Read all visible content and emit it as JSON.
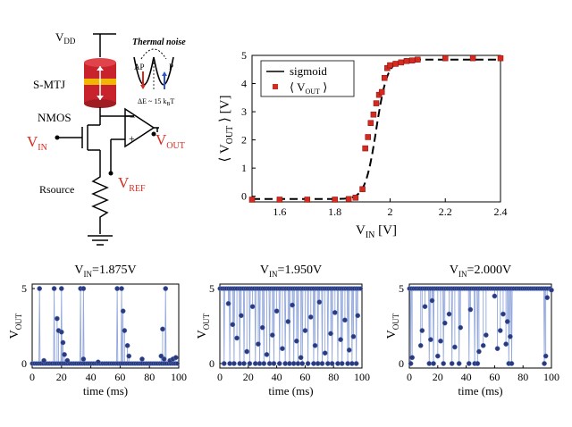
{
  "schematic": {
    "vdd": "V",
    "vdd_sub": "DD",
    "smtj": "S-MTJ",
    "nmos": "NMOS",
    "vin": "V",
    "vin_sub": "IN",
    "vout": "V",
    "vout_sub": "OUT",
    "vref": "V",
    "vref_sub": "REF",
    "rsource": "Rsource",
    "thermal_noise": "Thermal noise",
    "ap": "AP",
    "p": "P",
    "barrier": "ΔE ~ 15 k",
    "barrier_sub": "B",
    "barrier_tail": "T",
    "colors": {
      "red": "#d62a1e",
      "gold": "#f2b705",
      "blue": "#2b57c9"
    }
  },
  "chart_data": [
    {
      "id": "transfer",
      "type": "line",
      "xlabel": "V",
      "xlabel_sub": "IN",
      "xlabel_unit": " [V]",
      "ylabel": "⟨ V",
      "ylabel_sub": "OUT",
      "ylabel_unit": " ⟩ [V]",
      "xlim": [
        1.5,
        2.4
      ],
      "ylim": [
        -0.2,
        5
      ],
      "xticks": [
        1.6,
        1.8,
        2.0,
        2.2,
        2.4
      ],
      "xtick_labels": [
        "1.6",
        "1.8",
        "2",
        "2.2",
        "2.4"
      ],
      "yticks": [
        0,
        1,
        2,
        3,
        4,
        5
      ],
      "legend_position": "top-left",
      "series": [
        {
          "name": "sigmoid",
          "style": "dashed-line",
          "color": "#000000",
          "center": 1.95,
          "scale": 0.02,
          "amplitude": 4.95,
          "offset": -0.1
        },
        {
          "name": "⟨ V",
          "name_sub": "OUT",
          "name_tail": " ⟩",
          "style": "square-markers",
          "color": "#d62a1e",
          "x": [
            1.5,
            1.6,
            1.7,
            1.8,
            1.85,
            1.875,
            1.9,
            1.91,
            1.92,
            1.93,
            1.94,
            1.95,
            1.96,
            1.97,
            1.98,
            1.99,
            2.0,
            2.02,
            2.04,
            2.06,
            2.08,
            2.1,
            2.2,
            2.3,
            2.4
          ],
          "y": [
            -0.12,
            -0.12,
            -0.12,
            -0.12,
            -0.1,
            -0.05,
            0.25,
            1.7,
            2.1,
            2.6,
            2.9,
            3.3,
            3.6,
            3.7,
            4.2,
            4.55,
            4.65,
            4.7,
            4.75,
            4.8,
            4.82,
            4.85,
            4.9,
            4.9,
            4.9
          ]
        }
      ]
    },
    {
      "id": "trace1",
      "type": "line",
      "title": "V",
      "title_sub": "IN",
      "title_tail": "=1.875V",
      "xlabel": "time (ms)",
      "ylabel": "V",
      "ylabel_sub": "OUT",
      "xlim": [
        0,
        100
      ],
      "ylim": [
        -0.3,
        5.3
      ],
      "xticks": [
        0,
        20,
        40,
        60,
        80,
        100
      ],
      "yticks": [
        0,
        5
      ],
      "high_times": [
        5,
        15,
        20,
        33,
        35,
        58,
        61,
        91
      ],
      "mid_points": [
        [
          17,
          3.0
        ],
        [
          18,
          2.2
        ],
        [
          20,
          2.1
        ],
        [
          21,
          1.4
        ],
        [
          22,
          0.6
        ],
        [
          35,
          0.3
        ],
        [
          62,
          3.5
        ],
        [
          63,
          2.2
        ],
        [
          65,
          1.2
        ],
        [
          66,
          0.5
        ],
        [
          75,
          0.3
        ],
        [
          88,
          0.5
        ],
        [
          89,
          2.3
        ],
        [
          90,
          0.3
        ],
        [
          94,
          0.2
        ],
        [
          96,
          0.3
        ],
        [
          98,
          0.4
        ],
        [
          24,
          0.2
        ],
        [
          45,
          0.1
        ],
        [
          8,
          0.2
        ]
      ]
    },
    {
      "id": "trace2",
      "type": "line",
      "title": "V",
      "title_sub": "IN",
      "title_tail": "=1.950V",
      "xlabel": "time (ms)",
      "ylabel": "V",
      "ylabel_sub": "OUT",
      "xlim": [
        0,
        100
      ],
      "ylim": [
        -0.3,
        5.3
      ],
      "xticks": [
        0,
        20,
        40,
        60,
        80,
        100
      ],
      "yticks": [
        0,
        5
      ],
      "low_times": [
        3,
        7,
        10,
        14,
        17,
        21,
        25,
        28,
        31,
        35,
        38,
        42,
        46,
        49,
        52,
        55,
        58,
        62,
        66,
        69,
        72,
        76,
        79,
        83,
        86,
        90,
        93,
        96
      ],
      "mid_points": [
        [
          6,
          4.0
        ],
        [
          9,
          2.6
        ],
        [
          12,
          1.7
        ],
        [
          15,
          3.2
        ],
        [
          19,
          0.8
        ],
        [
          23,
          3.8
        ],
        [
          27,
          1.3
        ],
        [
          30,
          2.4
        ],
        [
          33,
          0.6
        ],
        [
          37,
          1.9
        ],
        [
          40,
          3.5
        ],
        [
          44,
          1.0
        ],
        [
          48,
          2.8
        ],
        [
          51,
          3.9
        ],
        [
          54,
          1.5
        ],
        [
          57,
          0.4
        ],
        [
          60,
          2.2
        ],
        [
          64,
          3.1
        ],
        [
          67,
          1.2
        ],
        [
          70,
          4.1
        ],
        [
          74,
          0.7
        ],
        [
          78,
          2.0
        ],
        [
          81,
          3.4
        ],
        [
          85,
          1.6
        ],
        [
          88,
          2.9
        ],
        [
          91,
          0.9
        ],
        [
          94,
          1.8
        ],
        [
          97,
          3.2
        ]
      ]
    },
    {
      "id": "trace3",
      "type": "line",
      "title": "V",
      "title_sub": "IN",
      "title_tail": "=2.000V",
      "xlabel": "time (ms)",
      "ylabel": "V",
      "ylabel_sub": "OUT",
      "xlim": [
        0,
        100
      ],
      "ylim": [
        -0.3,
        5.3
      ],
      "xticks": [
        0,
        20,
        40,
        60,
        80,
        100
      ],
      "yticks": [
        0,
        5
      ],
      "low_times": [
        1,
        14,
        17,
        24,
        30,
        35,
        42,
        46,
        48,
        70,
        72,
        95
      ],
      "mid_points": [
        [
          2,
          0.4
        ],
        [
          8,
          1.2
        ],
        [
          9,
          2.2
        ],
        [
          11,
          3.8
        ],
        [
          15,
          1.6
        ],
        [
          16,
          4.2
        ],
        [
          20,
          0.5
        ],
        [
          22,
          1.5
        ],
        [
          25,
          2.7
        ],
        [
          28,
          3.3
        ],
        [
          32,
          1.1
        ],
        [
          36,
          2.4
        ],
        [
          43,
          3.6
        ],
        [
          49,
          0.8
        ],
        [
          52,
          1.2
        ],
        [
          54,
          1.9
        ],
        [
          60,
          4.5
        ],
        [
          62,
          1.0
        ],
        [
          64,
          2.2
        ],
        [
          66,
          3.3
        ],
        [
          68,
          1.3
        ],
        [
          69,
          2.8
        ],
        [
          71,
          1.8
        ],
        [
          96,
          0.5
        ],
        [
          97,
          4.4
        ],
        [
          100,
          4.9
        ]
      ]
    }
  ]
}
